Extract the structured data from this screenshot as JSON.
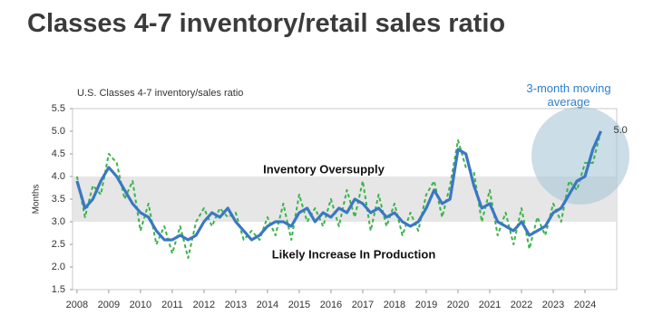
{
  "chart_data": {
    "type": "line",
    "title": "Classes 4-7 inventory/retail sales ratio",
    "subtitle": "U.S. Classes 4-7 inventory/sales ratio",
    "ylabel": "Months",
    "annotations": [
      "Inventory Oversupply",
      "Likely Increase In Production"
    ],
    "band": [
      3,
      4
    ],
    "xlim": [
      2007.86,
      2025
    ],
    "xticks": [
      2008,
      2009,
      2010,
      2011,
      2012,
      2013,
      2014,
      2015,
      2016,
      2017,
      2018,
      2019,
      2020,
      2021,
      2022,
      2023,
      2024
    ],
    "ylim": [
      1.5,
      5.5
    ],
    "yticks": [
      1.5,
      {
        "value": 2,
        "label": "2.0"
      },
      2.5,
      {
        "value": 3,
        "label": "3.0"
      },
      3.5,
      {
        "value": 4,
        "label": "4.0"
      },
      4.5,
      {
        "value": 5,
        "label": "5.0"
      },
      5.5
    ],
    "x": [
      2008,
      2008.25,
      2008.5,
      2008.75,
      2009,
      2009.25,
      2009.5,
      2009.75,
      2010,
      2010.25,
      2010.5,
      2010.75,
      2011,
      2011.25,
      2011.5,
      2011.75,
      2012,
      2012.25,
      2012.5,
      2012.75,
      2013,
      2013.25,
      2013.5,
      2013.75,
      2014,
      2014.25,
      2014.5,
      2014.75,
      2015,
      2015.25,
      2015.5,
      2015.75,
      2016,
      2016.25,
      2016.5,
      2016.75,
      2017,
      2017.25,
      2017.5,
      2017.75,
      2018,
      2018.25,
      2018.5,
      2018.75,
      2019,
      2019.25,
      2019.5,
      2019.75,
      2020,
      2020.25,
      2020.5,
      2020.75,
      2021,
      2021.25,
      2021.5,
      2021.75,
      2022,
      2022.25,
      2022.5,
      2022.75,
      2023,
      2023.25,
      2023.5,
      2023.75,
      2024,
      2024.25,
      2024.5
    ],
    "series": [
      {
        "color": "#3cb34a",
        "dashed": true,
        "values": [
          4.0,
          3.1,
          3.8,
          3.6,
          4.5,
          4.3,
          3.5,
          3.9,
          2.8,
          3.4,
          2.5,
          2.9,
          2.3,
          2.9,
          2.2,
          3.0,
          3.3,
          2.9,
          3.3,
          3.1,
          3.2,
          2.6,
          2.8,
          2.6,
          3.1,
          2.7,
          3.4,
          2.6,
          3.6,
          3.0,
          3.3,
          2.9,
          3.5,
          2.9,
          3.7,
          3.1,
          3.9,
          2.8,
          3.6,
          2.9,
          3.4,
          2.7,
          3.2,
          2.8,
          3.6,
          3.9,
          3.1,
          3.8,
          4.8,
          4.2,
          4.1,
          3.0,
          3.7,
          2.7,
          3.2,
          2.5,
          3.3,
          2.4,
          3.1,
          2.7,
          3.4,
          3.0,
          3.9,
          3.7,
          4.3,
          4.3,
          5.0
        ]
      },
      {
        "name": "3-month moving average",
        "color": "#3a78c2",
        "dashed": false,
        "values": [
          3.9,
          3.3,
          3.5,
          3.9,
          4.2,
          4.0,
          3.7,
          3.4,
          3.2,
          3.1,
          2.8,
          2.6,
          2.6,
          2.7,
          2.6,
          2.7,
          3.0,
          3.2,
          3.1,
          3.3,
          3.0,
          2.8,
          2.6,
          2.7,
          2.9,
          3.0,
          3.0,
          2.9,
          3.2,
          3.3,
          3.0,
          3.2,
          3.1,
          3.3,
          3.2,
          3.5,
          3.4,
          3.2,
          3.3,
          3.1,
          3.2,
          3.0,
          2.9,
          3.0,
          3.3,
          3.7,
          3.4,
          3.5,
          4.6,
          4.5,
          3.8,
          3.3,
          3.4,
          3.0,
          2.9,
          2.8,
          3.0,
          2.7,
          2.8,
          2.9,
          3.2,
          3.3,
          3.6,
          3.9,
          4.0,
          4.6,
          5.0
        ],
        "value_labels": [
          null,
          null,
          null,
          null,
          null,
          null,
          null,
          null,
          null,
          null,
          null,
          null,
          null,
          null,
          null,
          null,
          null,
          null,
          null,
          null,
          null,
          null,
          null,
          null,
          null,
          null,
          null,
          null,
          null,
          null,
          null,
          null,
          null,
          null,
          null,
          null,
          null,
          null,
          null,
          null,
          null,
          null,
          null,
          null,
          null,
          null,
          null,
          null,
          null,
          null,
          null,
          null,
          null,
          null,
          null,
          null,
          null,
          null,
          null,
          null,
          null,
          null,
          null,
          null,
          null,
          null,
          "5.0"
        ]
      }
    ]
  }
}
